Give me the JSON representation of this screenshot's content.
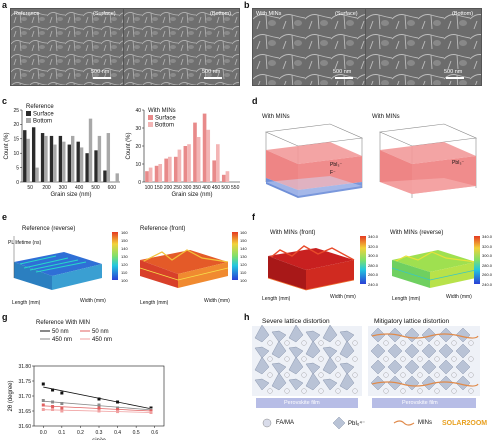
{
  "panels": {
    "a": {
      "label": "a",
      "left_label": "Reference",
      "mid_label": "(Surface)",
      "right_label": "(Bottom)",
      "scale_left": "500 nm",
      "scale_right": "500 nm"
    },
    "b": {
      "label": "b",
      "left_label": "With MINs",
      "mid_label": "(Surface)",
      "right_label": "(Bottom)",
      "scale_left": "500 nm",
      "scale_right": "500 nm"
    },
    "c": {
      "label": "c"
    },
    "d": {
      "label": "d",
      "left_title": "With MINs",
      "right_title": "With MINs",
      "ion_label": "PbI₃⁻",
      "ion_label_r": "PbI₃⁻",
      "f_label": "F⁻"
    },
    "e": {
      "label": "e",
      "left_title": "Reference (reverse)",
      "right_title": "Reference (front)",
      "zaxis": "PL lifetime (ns)",
      "cbar_label_l": "PL lifetime intensity (a.u.)",
      "cbar_label_r": "PL lifetime intensity (a.u.)",
      "length": "Length (mm)",
      "width": "Width (mm)",
      "cbar_ticks_l": [
        "160",
        "150",
        "140",
        "130",
        "120",
        "110",
        "100"
      ],
      "cbar_ticks_r": [
        "160",
        "150",
        "140",
        "130",
        "120",
        "110",
        "100"
      ]
    },
    "f": {
      "label": "f",
      "left_title": "With MINs (front)",
      "right_title": "With MINs (reverse)",
      "zaxis": "PL lifetime (ns)",
      "cbar_label": "PL lifetime intensity (a.u.)",
      "length": "Length (mm)",
      "width": "Width (mm)",
      "cbar_ticks_l": [
        "340.0",
        "320.0",
        "300.0",
        "280.0",
        "260.0",
        "240.0"
      ],
      "cbar_ticks_r": [
        "340.0",
        "320.0",
        "300.0",
        "280.0",
        "260.0",
        "240.0"
      ]
    },
    "g": {
      "label": "g"
    },
    "h": {
      "label": "h",
      "left_title": "Severe lattice distortion",
      "right_title": "Mitigatory lattice distortion",
      "film_label": "Perovskite film",
      "legend_fama": "FA/MA",
      "legend_pbi": "PbI₆⁴⁻",
      "legend_mins": "MINs",
      "watermark": "SOLAR2OOM"
    }
  },
  "chart_data": [
    {
      "type": "bar",
      "title": "",
      "legend_title": "Reference",
      "xlabel": "Grain size (nm)",
      "ylabel": "Count (%)",
      "ylim": [
        0,
        25
      ],
      "yticks": [
        0,
        5,
        10,
        15,
        20,
        25
      ],
      "xticks": [
        "50",
        "200",
        "300",
        "400",
        "500",
        "600"
      ],
      "x": [
        50,
        100,
        150,
        200,
        250,
        300,
        350,
        400,
        450,
        500,
        550
      ],
      "series": [
        {
          "name": "Surface",
          "color": "#2b2b2b",
          "values": [
            18,
            19,
            17,
            16,
            16,
            13,
            14,
            10,
            11,
            4,
            0
          ]
        },
        {
          "name": "Bottom",
          "color": "#a8a8a8",
          "values": [
            15,
            5,
            16,
            13,
            14,
            16,
            12,
            22,
            16,
            17,
            3
          ]
        }
      ]
    },
    {
      "type": "bar",
      "title": "",
      "legend_title": "With MINs",
      "xlabel": "Grain size (nm)",
      "ylabel": "Count (%)",
      "ylim": [
        0,
        40
      ],
      "yticks": [
        0,
        10,
        20,
        30,
        40
      ],
      "xticks": [
        "100",
        "150",
        "200",
        "250",
        "300",
        "350",
        "400",
        "450",
        "500",
        "550"
      ],
      "x": [
        100,
        150,
        200,
        250,
        300,
        350,
        400,
        450,
        500,
        550
      ],
      "series": [
        {
          "name": "Surface",
          "color": "#e88a8a",
          "values": [
            6,
            9,
            13,
            14,
            20,
            33,
            38,
            12,
            4,
            0
          ]
        },
        {
          "name": "Bottom",
          "color": "#f3b5b5",
          "values": [
            8,
            10,
            14,
            18,
            21,
            25,
            29,
            21,
            6,
            0
          ]
        }
      ]
    },
    {
      "type": "scatter",
      "title": "",
      "legend_title": "Reference With MIN",
      "xlabel": "sin²φ",
      "ylabel": "2θ (degree)",
      "xlim": [
        -0.05,
        0.65
      ],
      "ylim": [
        31.6,
        31.8
      ],
      "xticks": [
        0.0,
        0.1,
        0.2,
        0.3,
        0.4,
        0.5,
        0.6
      ],
      "yticks": [
        31.6,
        31.65,
        31.7,
        31.75,
        31.8
      ],
      "series": [
        {
          "name": "50 nm",
          "group": "Reference",
          "color": "#111111",
          "x": [
            0,
            0.05,
            0.1,
            0.3,
            0.4,
            0.58
          ],
          "y": [
            31.74,
            31.72,
            31.71,
            31.69,
            31.68,
            31.66
          ]
        },
        {
          "name": "450 nm",
          "group": "Reference",
          "color": "#8a8a8a",
          "x": [
            0,
            0.05,
            0.1,
            0.3,
            0.4,
            0.58
          ],
          "y": [
            31.685,
            31.68,
            31.675,
            31.67,
            31.66,
            31.655
          ]
        },
        {
          "name": "50 nm",
          "group": "With MIN",
          "color": "#e06060",
          "x": [
            0,
            0.05,
            0.1,
            0.3,
            0.4,
            0.58
          ],
          "y": [
            31.67,
            31.665,
            31.66,
            31.66,
            31.655,
            31.65
          ]
        },
        {
          "name": "450 nm",
          "group": "With MIN",
          "color": "#f0a0a0",
          "x": [
            0,
            0.05,
            0.1,
            0.3,
            0.4,
            0.58
          ],
          "y": [
            31.655,
            31.655,
            31.65,
            31.65,
            31.648,
            31.645
          ]
        }
      ]
    }
  ]
}
